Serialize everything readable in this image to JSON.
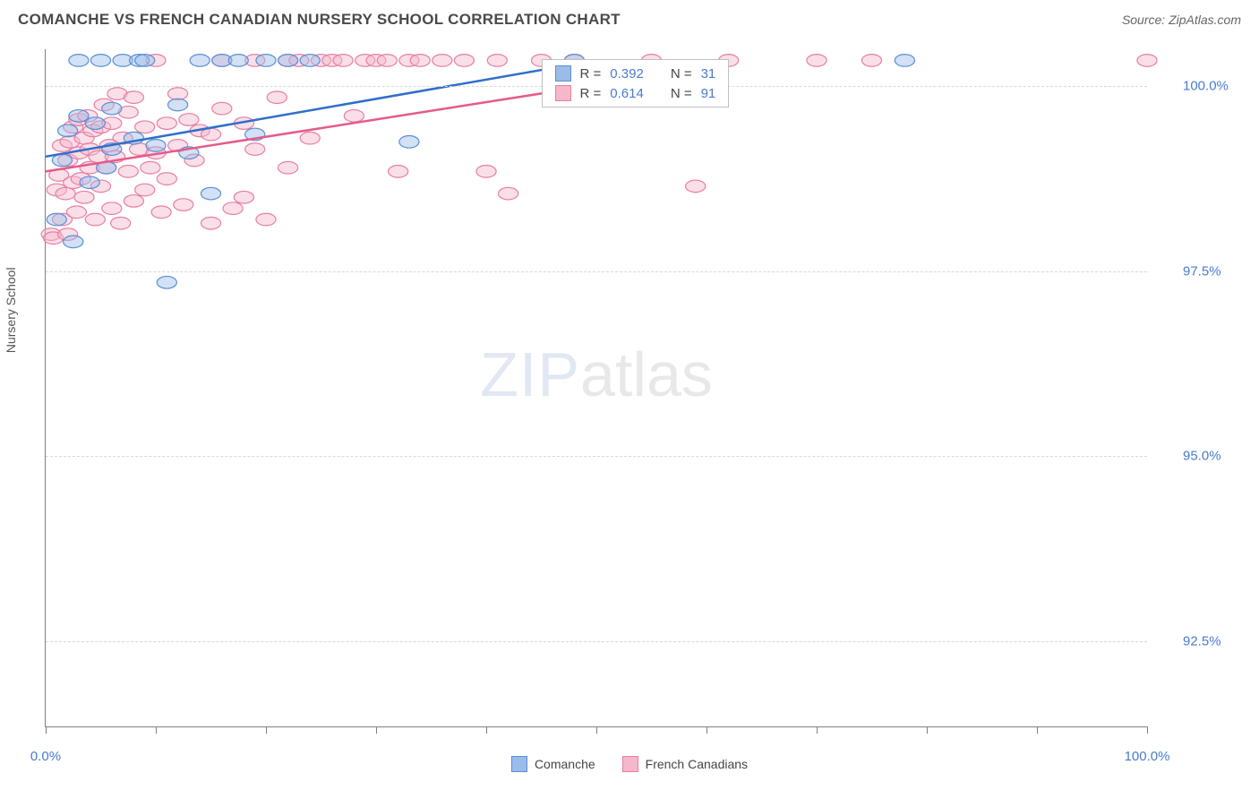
{
  "header": {
    "title": "COMANCHE VS FRENCH CANADIAN NURSERY SCHOOL CORRELATION CHART",
    "source": "Source: ZipAtlas.com"
  },
  "chart": {
    "type": "scatter",
    "ylabel": "Nursery School",
    "xlim": [
      0,
      100
    ],
    "ylim": [
      91.35,
      100.5
    ],
    "xtick_positions": [
      0,
      10,
      20,
      30,
      40,
      50,
      60,
      70,
      80,
      90,
      100
    ],
    "xtick_labels": {
      "0": "0.0%",
      "100": "100.0%"
    },
    "ytick_values": [
      92.5,
      95.0,
      97.5,
      100.0
    ],
    "ytick_labels": [
      "92.5%",
      "95.0%",
      "97.5%",
      "100.0%"
    ],
    "background_color": "#ffffff",
    "grid_color": "#d8d8d8",
    "axis_color": "#808080",
    "label_color": "#4a7bd0",
    "marker_radius": 9,
    "marker_opacity": 0.45,
    "line_width": 2.5,
    "series": [
      {
        "name": "Comanche",
        "color_fill": "#9bbce8",
        "color_stroke": "#5b8fd6",
        "line_color": "#2f6fc9",
        "R": "0.392",
        "N": "31",
        "trend": {
          "x1": 0,
          "y1": 99.05,
          "x2": 50,
          "y2": 100.35
        },
        "points": [
          [
            1,
            98.2
          ],
          [
            1.5,
            99.0
          ],
          [
            2,
            99.4
          ],
          [
            2.5,
            97.9
          ],
          [
            3,
            99.6
          ],
          [
            3,
            100.35
          ],
          [
            4,
            98.7
          ],
          [
            4.5,
            99.5
          ],
          [
            5,
            100.35
          ],
          [
            5.5,
            98.9
          ],
          [
            6,
            99.15
          ],
          [
            6,
            99.7
          ],
          [
            7,
            100.35
          ],
          [
            8,
            99.3
          ],
          [
            8.5,
            100.35
          ],
          [
            9,
            100.35
          ],
          [
            10,
            99.2
          ],
          [
            11,
            97.35
          ],
          [
            12,
            99.75
          ],
          [
            13,
            99.1
          ],
          [
            14,
            100.35
          ],
          [
            15,
            98.55
          ],
          [
            16,
            100.35
          ],
          [
            17.5,
            100.35
          ],
          [
            19,
            99.35
          ],
          [
            20,
            100.35
          ],
          [
            22,
            100.35
          ],
          [
            24,
            100.35
          ],
          [
            33,
            99.25
          ],
          [
            48,
            100.35
          ],
          [
            78,
            100.35
          ]
        ]
      },
      {
        "name": "French Canadians",
        "color_fill": "#f5b8cb",
        "color_stroke": "#e87fa3",
        "line_color": "#e55a8a",
        "R": "0.614",
        "N": "91",
        "trend": {
          "x1": 0,
          "y1": 98.85,
          "x2": 62,
          "y2": 100.3
        },
        "points": [
          [
            0.5,
            98.0
          ],
          [
            0.7,
            97.95
          ],
          [
            1,
            98.6
          ],
          [
            1.2,
            98.8
          ],
          [
            1.5,
            99.2
          ],
          [
            1.5,
            98.2
          ],
          [
            1.8,
            98.55
          ],
          [
            2,
            99.0
          ],
          [
            2,
            98.0
          ],
          [
            2.2,
            99.25
          ],
          [
            2.5,
            98.7
          ],
          [
            2.5,
            99.45
          ],
          [
            2.8,
            98.3
          ],
          [
            3,
            99.1
          ],
          [
            3,
            99.55
          ],
          [
            3.2,
            98.75
          ],
          [
            3.5,
            99.3
          ],
          [
            3.5,
            98.5
          ],
          [
            3.8,
            99.6
          ],
          [
            4,
            98.9
          ],
          [
            4,
            99.15
          ],
          [
            4.3,
            99.4
          ],
          [
            4.5,
            98.2
          ],
          [
            4.8,
            99.05
          ],
          [
            5,
            99.45
          ],
          [
            5,
            98.65
          ],
          [
            5.3,
            99.75
          ],
          [
            5.5,
            98.9
          ],
          [
            5.8,
            99.2
          ],
          [
            6,
            99.5
          ],
          [
            6,
            98.35
          ],
          [
            6.3,
            99.05
          ],
          [
            6.5,
            99.9
          ],
          [
            6.8,
            98.15
          ],
          [
            7,
            99.3
          ],
          [
            7.5,
            99.65
          ],
          [
            7.5,
            98.85
          ],
          [
            8,
            98.45
          ],
          [
            8,
            99.85
          ],
          [
            8.5,
            99.15
          ],
          [
            9,
            99.45
          ],
          [
            9,
            98.6
          ],
          [
            9.5,
            98.9
          ],
          [
            10,
            100.35
          ],
          [
            10,
            99.1
          ],
          [
            10.5,
            98.3
          ],
          [
            11,
            99.5
          ],
          [
            11,
            98.75
          ],
          [
            12,
            99.2
          ],
          [
            12,
            99.9
          ],
          [
            12.5,
            98.4
          ],
          [
            13,
            99.55
          ],
          [
            13.5,
            99.0
          ],
          [
            14,
            99.4
          ],
          [
            15,
            99.35
          ],
          [
            15,
            98.15
          ],
          [
            16,
            100.35
          ],
          [
            16,
            99.7
          ],
          [
            17,
            98.35
          ],
          [
            18,
            99.5
          ],
          [
            18,
            98.5
          ],
          [
            19,
            100.35
          ],
          [
            19,
            99.15
          ],
          [
            20,
            98.2
          ],
          [
            21,
            99.85
          ],
          [
            22,
            98.9
          ],
          [
            22,
            100.35
          ],
          [
            23,
            100.35
          ],
          [
            24,
            99.3
          ],
          [
            25,
            100.35
          ],
          [
            26,
            100.35
          ],
          [
            27,
            100.35
          ],
          [
            28,
            99.6
          ],
          [
            29,
            100.35
          ],
          [
            30,
            100.35
          ],
          [
            31,
            100.35
          ],
          [
            32,
            98.85
          ],
          [
            33,
            100.35
          ],
          [
            34,
            100.35
          ],
          [
            36,
            100.35
          ],
          [
            38,
            100.35
          ],
          [
            40,
            98.85
          ],
          [
            41,
            100.35
          ],
          [
            42,
            98.55
          ],
          [
            45,
            100.35
          ],
          [
            48,
            100.35
          ],
          [
            55,
            100.35
          ],
          [
            59,
            98.65
          ],
          [
            62,
            100.35
          ],
          [
            70,
            100.35
          ],
          [
            75,
            100.35
          ],
          [
            100,
            100.35
          ]
        ]
      }
    ],
    "legend_bottom": [
      {
        "label": "Comanche",
        "fill": "#9bbce8",
        "stroke": "#5b8fd6"
      },
      {
        "label": "French Canadians",
        "fill": "#f5b8cb",
        "stroke": "#e87fa3"
      }
    ],
    "watermark": {
      "part1": "ZIP",
      "part2": "atlas"
    }
  }
}
